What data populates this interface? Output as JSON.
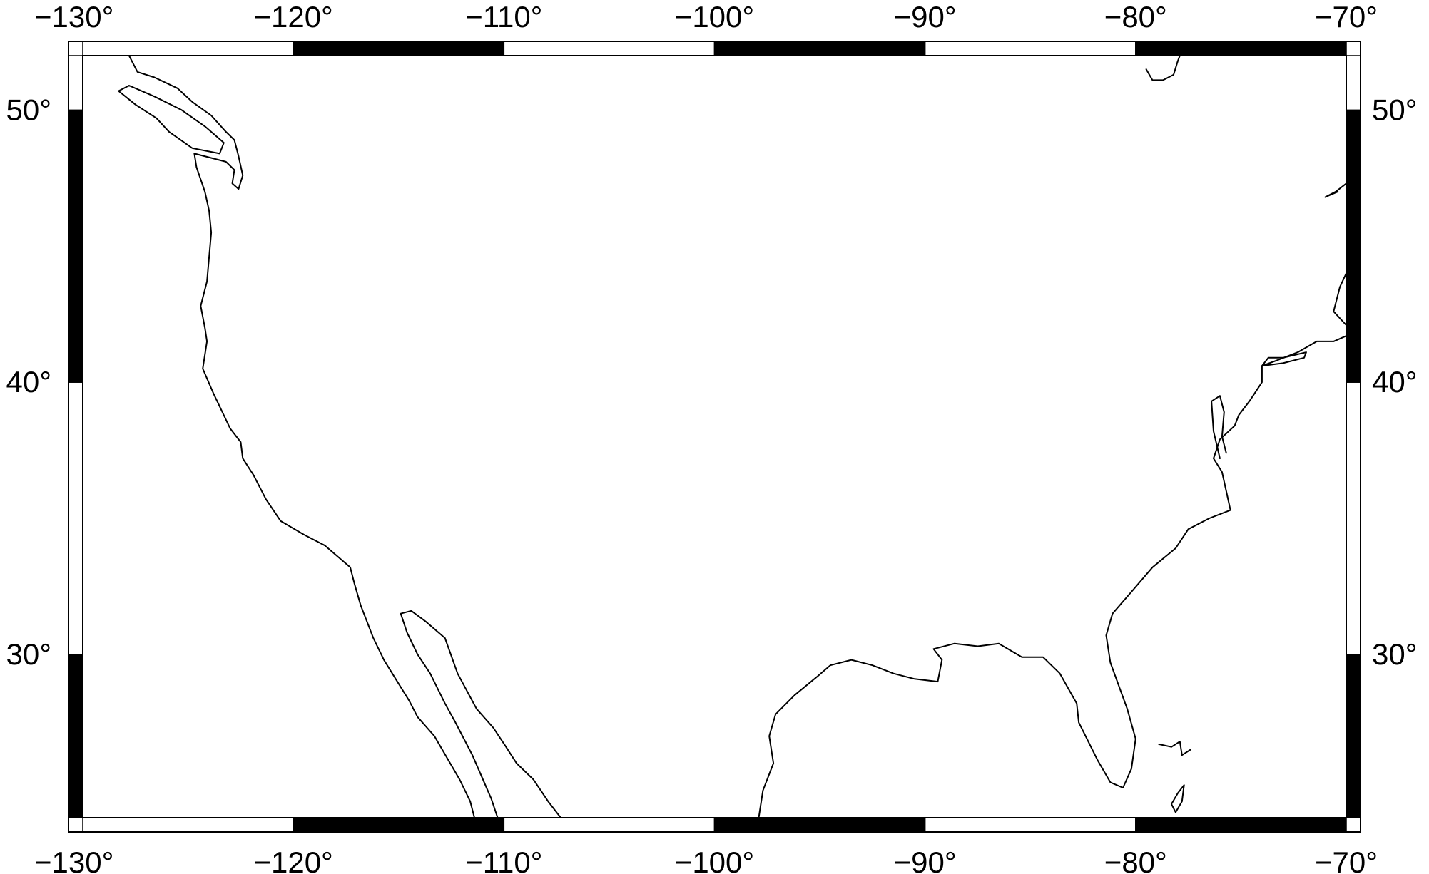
{
  "map": {
    "projection": "plate-carree",
    "extent": {
      "west": -130,
      "east": -70,
      "south": 24,
      "north": 52
    },
    "frame": {
      "style": "fancy",
      "fill": "#000000",
      "alt_fill": "#ffffff"
    },
    "x_ticks": [
      {
        "value": -130,
        "label": "−130°"
      },
      {
        "value": -120,
        "label": "−120°"
      },
      {
        "value": -110,
        "label": "−110°"
      },
      {
        "value": -100,
        "label": "−100°"
      },
      {
        "value": -90,
        "label": "−90°"
      },
      {
        "value": -80,
        "label": "−80°"
      },
      {
        "value": -70,
        "label": "−70°"
      }
    ],
    "y_ticks": [
      {
        "value": 30,
        "label": "30°"
      },
      {
        "value": 40,
        "label": "40°"
      },
      {
        "value": 50,
        "label": "50°"
      }
    ],
    "x_frame_stops": [
      -130,
      -120,
      -110,
      -100,
      -90,
      -80,
      -70
    ],
    "y_frame_stops": [
      24,
      30,
      40,
      50,
      52
    ],
    "coastlines": [
      {
        "name": "pacific-coast",
        "points": [
          [
            -124.7,
            48.4
          ],
          [
            -124.6,
            47.9
          ],
          [
            -124.2,
            47.0
          ],
          [
            -124.0,
            46.3
          ],
          [
            -123.9,
            45.5
          ],
          [
            -124.0,
            44.6
          ],
          [
            -124.1,
            43.7
          ],
          [
            -124.4,
            42.8
          ],
          [
            -124.2,
            42.0
          ],
          [
            -124.1,
            41.5
          ],
          [
            -124.3,
            40.5
          ],
          [
            -123.8,
            39.6
          ],
          [
            -123.0,
            38.3
          ],
          [
            -122.5,
            37.8
          ],
          [
            -122.4,
            37.2
          ],
          [
            -121.9,
            36.6
          ],
          [
            -121.3,
            35.7
          ],
          [
            -120.6,
            34.9
          ],
          [
            -119.5,
            34.4
          ],
          [
            -118.5,
            34.0
          ],
          [
            -117.3,
            33.2
          ],
          [
            -117.1,
            32.6
          ],
          [
            -116.8,
            31.8
          ],
          [
            -116.2,
            30.6
          ],
          [
            -115.7,
            29.8
          ],
          [
            -114.5,
            28.3
          ],
          [
            -114.1,
            27.7
          ],
          [
            -113.3,
            27.0
          ],
          [
            -112.1,
            25.4
          ],
          [
            -111.6,
            24.6
          ],
          [
            -111.4,
            24.0
          ]
        ]
      },
      {
        "name": "baja-gulf-coast",
        "points": [
          [
            -110.3,
            24.0
          ],
          [
            -110.6,
            24.7
          ],
          [
            -111.5,
            26.3
          ],
          [
            -112.3,
            27.5
          ],
          [
            -112.8,
            28.2
          ],
          [
            -113.5,
            29.3
          ],
          [
            -114.1,
            30.0
          ],
          [
            -114.6,
            30.8
          ],
          [
            -114.9,
            31.5
          ],
          [
            -114.4,
            31.6
          ],
          [
            -113.7,
            31.2
          ],
          [
            -112.8,
            30.6
          ],
          [
            -112.2,
            29.3
          ],
          [
            -111.3,
            28.0
          ],
          [
            -110.5,
            27.3
          ],
          [
            -109.9,
            26.6
          ],
          [
            -109.4,
            26.0
          ],
          [
            -108.6,
            25.4
          ],
          [
            -107.9,
            24.6
          ],
          [
            -107.3,
            24.0
          ]
        ]
      },
      {
        "name": "vancouver-island",
        "points": [
          [
            -128.3,
            50.7
          ],
          [
            -127.5,
            50.2
          ],
          [
            -126.5,
            49.7
          ],
          [
            -125.9,
            49.2
          ],
          [
            -124.8,
            48.6
          ],
          [
            -123.5,
            48.4
          ],
          [
            -123.3,
            48.8
          ],
          [
            -124.2,
            49.4
          ],
          [
            -125.3,
            50.0
          ],
          [
            -126.6,
            50.5
          ],
          [
            -127.8,
            50.9
          ],
          [
            -128.3,
            50.7
          ]
        ]
      },
      {
        "name": "bc-mainland",
        "points": [
          [
            -127.8,
            52.0
          ],
          [
            -127.4,
            51.4
          ],
          [
            -126.6,
            51.2
          ],
          [
            -125.5,
            50.8
          ],
          [
            -124.8,
            50.3
          ],
          [
            -123.9,
            49.8
          ],
          [
            -123.2,
            49.2
          ],
          [
            -122.8,
            48.9
          ],
          [
            -122.6,
            48.3
          ],
          [
            -122.4,
            47.6
          ],
          [
            -122.6,
            47.1
          ],
          [
            -122.9,
            47.3
          ],
          [
            -122.8,
            47.8
          ],
          [
            -123.2,
            48.1
          ],
          [
            -124.7,
            48.4
          ]
        ]
      },
      {
        "name": "gulf-coast",
        "points": [
          [
            -97.9,
            24.0
          ],
          [
            -97.7,
            25.0
          ],
          [
            -97.2,
            26.0
          ],
          [
            -97.4,
            27.0
          ],
          [
            -97.1,
            27.8
          ],
          [
            -96.2,
            28.5
          ],
          [
            -95.1,
            29.2
          ],
          [
            -94.5,
            29.6
          ],
          [
            -93.5,
            29.8
          ],
          [
            -92.5,
            29.6
          ],
          [
            -91.5,
            29.3
          ],
          [
            -90.5,
            29.1
          ],
          [
            -89.4,
            29.0
          ],
          [
            -89.2,
            29.8
          ],
          [
            -89.6,
            30.2
          ],
          [
            -88.6,
            30.4
          ],
          [
            -87.5,
            30.3
          ],
          [
            -86.5,
            30.4
          ],
          [
            -85.4,
            29.9
          ],
          [
            -84.4,
            29.9
          ],
          [
            -83.6,
            29.3
          ],
          [
            -82.8,
            28.2
          ],
          [
            -82.7,
            27.5
          ],
          [
            -81.8,
            26.1
          ],
          [
            -81.2,
            25.3
          ],
          [
            -80.6,
            25.1
          ],
          [
            -80.2,
            25.8
          ],
          [
            -80.0,
            26.9
          ],
          [
            -80.4,
            28.0
          ],
          [
            -81.2,
            29.7
          ],
          [
            -81.4,
            30.7
          ],
          [
            -81.1,
            31.5
          ],
          [
            -80.2,
            32.3
          ],
          [
            -79.2,
            33.2
          ],
          [
            -78.1,
            33.9
          ],
          [
            -77.5,
            34.6
          ],
          [
            -76.5,
            35.0
          ],
          [
            -75.5,
            35.3
          ],
          [
            -75.9,
            36.7
          ],
          [
            -76.3,
            37.2
          ],
          [
            -76.0,
            37.9
          ],
          [
            -75.3,
            38.4
          ],
          [
            -75.1,
            38.8
          ],
          [
            -74.6,
            39.3
          ],
          [
            -74.0,
            40.0
          ],
          [
            -74.0,
            40.6
          ],
          [
            -73.3,
            40.8
          ],
          [
            -72.3,
            41.1
          ],
          [
            -71.4,
            41.5
          ],
          [
            -70.6,
            41.5
          ],
          [
            -70.0,
            41.7
          ]
        ]
      },
      {
        "name": "chesapeake",
        "points": [
          [
            -76.0,
            37.2
          ],
          [
            -76.3,
            38.2
          ],
          [
            -76.4,
            39.3
          ],
          [
            -76.0,
            39.5
          ],
          [
            -75.8,
            38.9
          ],
          [
            -75.9,
            38.0
          ],
          [
            -75.7,
            37.4
          ]
        ]
      },
      {
        "name": "long-island",
        "points": [
          [
            -74.0,
            40.6
          ],
          [
            -73.0,
            40.7
          ],
          [
            -72.0,
            40.9
          ],
          [
            -71.9,
            41.1
          ],
          [
            -73.0,
            40.9
          ],
          [
            -73.7,
            40.9
          ],
          [
            -74.0,
            40.6
          ]
        ]
      },
      {
        "name": "cape-cod",
        "points": [
          [
            -70.0,
            41.7
          ],
          [
            -70.0,
            42.1
          ],
          [
            -70.6,
            42.6
          ],
          [
            -70.3,
            43.5
          ],
          [
            -70.0,
            44.0
          ]
        ]
      },
      {
        "name": "james-bay",
        "points": [
          [
            -79.5,
            51.5
          ],
          [
            -79.2,
            51.1
          ],
          [
            -78.7,
            51.1
          ],
          [
            -78.2,
            51.3
          ],
          [
            -78.0,
            51.8
          ],
          [
            -77.9,
            52.0
          ]
        ]
      },
      {
        "name": "gaspe",
        "points": [
          [
            -70.0,
            47.3
          ],
          [
            -70.5,
            47.0
          ],
          [
            -71.0,
            46.8
          ],
          [
            -70.4,
            47.0
          ]
        ]
      },
      {
        "name": "andros-bahamas",
        "points": [
          [
            -78.1,
            24.2
          ],
          [
            -77.8,
            24.6
          ],
          [
            -77.7,
            25.2
          ],
          [
            -78.0,
            24.9
          ],
          [
            -78.3,
            24.5
          ],
          [
            -78.1,
            24.2
          ]
        ]
      },
      {
        "name": "grand-bahama",
        "points": [
          [
            -78.9,
            26.7
          ],
          [
            -78.3,
            26.6
          ],
          [
            -77.9,
            26.8
          ],
          [
            -77.8,
            26.3
          ],
          [
            -77.4,
            26.5
          ]
        ]
      }
    ]
  }
}
